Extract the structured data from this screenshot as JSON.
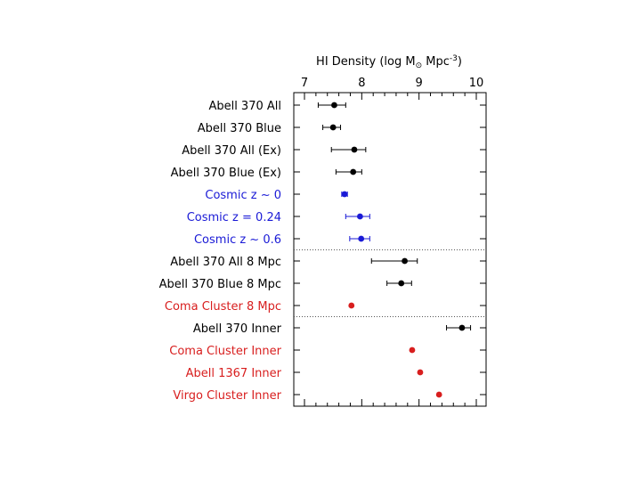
{
  "chart_data": {
    "type": "scatter",
    "title": "",
    "xlabel": "HI Density (log M⊙ Mpc⁻³)",
    "ylabel": "",
    "xlim": [
      7,
      10
    ],
    "x_ticks": [
      "7",
      "8",
      "9",
      "10"
    ],
    "legend": "none",
    "colors": {
      "black": "#000000",
      "blue": "#1a1ad6",
      "red": "#d81e1e"
    },
    "points": [
      {
        "label": "Abell 370 All",
        "x": 7.52,
        "err_lo": 0.28,
        "err_hi": 0.2,
        "color": "black"
      },
      {
        "label": "Abell 370 Blue",
        "x": 7.5,
        "err_lo": 0.18,
        "err_hi": 0.13,
        "color": "black"
      },
      {
        "label": "Abell 370 All (Ex)",
        "x": 7.87,
        "err_lo": 0.4,
        "err_hi": 0.2,
        "color": "black"
      },
      {
        "label": "Abell 370 Blue (Ex)",
        "x": 7.85,
        "err_lo": 0.3,
        "err_hi": 0.15,
        "color": "black"
      },
      {
        "label": "Cosmic z ~ 0",
        "x": 7.7,
        "err_lo": 0.05,
        "err_hi": 0.05,
        "color": "blue"
      },
      {
        "label": "Cosmic z = 0.24",
        "x": 7.97,
        "err_lo": 0.25,
        "err_hi": 0.17,
        "color": "blue"
      },
      {
        "label": "Cosmic z ~ 0.6",
        "x": 7.99,
        "err_lo": 0.2,
        "err_hi": 0.15,
        "color": "blue"
      },
      {
        "label": "Abell 370 All 8 Mpc",
        "x": 8.75,
        "err_lo": 0.58,
        "err_hi": 0.22,
        "color": "black"
      },
      {
        "label": "Abell 370 Blue 8 Mpc",
        "x": 8.69,
        "err_lo": 0.25,
        "err_hi": 0.18,
        "color": "black"
      },
      {
        "label": "Coma Cluster 8 Mpc",
        "x": 7.82,
        "err_lo": 0,
        "err_hi": 0,
        "color": "red"
      },
      {
        "label": "Abell 370 Inner",
        "x": 9.75,
        "err_lo": 0.27,
        "err_hi": 0.15,
        "color": "black"
      },
      {
        "label": "Coma Cluster Inner",
        "x": 8.88,
        "err_lo": 0,
        "err_hi": 0,
        "color": "red"
      },
      {
        "label": "Abell 1367 Inner",
        "x": 9.02,
        "err_lo": 0,
        "err_hi": 0,
        "color": "red"
      },
      {
        "label": "Virgo Cluster Inner",
        "x": 9.35,
        "err_lo": 0,
        "err_hi": 0,
        "color": "red"
      }
    ],
    "separators_after": [
      6,
      9
    ]
  }
}
